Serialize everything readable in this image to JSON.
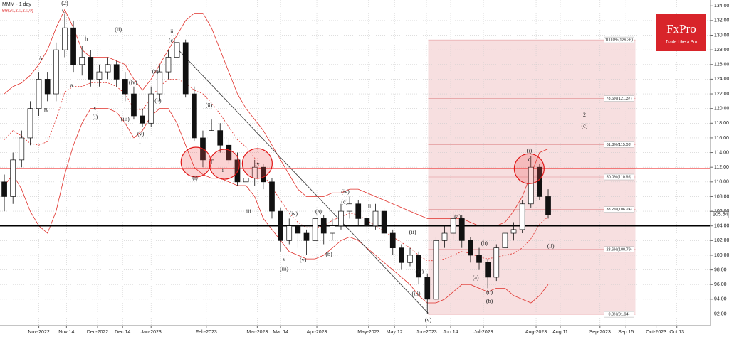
{
  "chart_data": {
    "type": "candlestick",
    "title": "MMM - 1 day",
    "subtitle": "BB(20,2.0,2.0,0)",
    "brand": {
      "name": "FxPro",
      "tagline": "Trade Like a Pro"
    },
    "open": [
      110,
      108,
      113,
      116,
      120,
      124,
      122,
      128,
      131,
      126,
      127,
      124,
      125,
      126,
      124,
      122,
      119,
      118,
      122,
      125,
      127,
      129,
      122,
      116,
      113,
      117,
      115,
      113,
      110,
      110.5,
      112,
      110,
      106,
      102,
      104,
      103,
      102,
      105,
      103,
      104,
      106,
      107,
      105,
      104,
      106,
      103,
      101,
      99,
      100,
      97,
      94,
      102,
      103,
      105,
      102,
      100,
      99,
      97,
      101,
      103,
      103.5,
      107,
      112,
      108
    ],
    "high": [
      111,
      114,
      117,
      121,
      125,
      125,
      129,
      133,
      132,
      128.5,
      128,
      126,
      127,
      126.5,
      125,
      123,
      120,
      123,
      126,
      128,
      129.5,
      129.4,
      123,
      117,
      118.5,
      118,
      116,
      114,
      111.5,
      113,
      112.5,
      110.5,
      106.5,
      105,
      104.5,
      103.5,
      106,
      105.5,
      105,
      107,
      108,
      107.5,
      105.5,
      107,
      106.5,
      103.5,
      101.5,
      101,
      100.5,
      97.5,
      102.5,
      104,
      106,
      105.5,
      102.5,
      101,
      99.5,
      101.5,
      104,
      104.5,
      107.5,
      113.5,
      112.5,
      109
    ],
    "low": [
      106,
      107,
      112,
      115,
      119,
      121,
      121,
      127,
      125,
      124.5,
      123,
      123,
      124,
      123,
      121,
      118.5,
      117.5,
      117.5,
      121,
      124,
      126,
      121.5,
      115.5,
      112,
      112.5,
      114,
      112.5,
      109.5,
      108.5,
      109.5,
      109,
      105,
      100.5,
      101.5,
      101,
      100,
      101.5,
      101.5,
      102,
      103.5,
      105,
      104,
      103,
      103.5,
      102.5,
      100,
      98,
      98.5,
      96,
      92,
      93.5,
      101,
      102,
      101,
      99,
      98,
      95.5,
      96.5,
      100.5,
      102,
      103,
      106.5,
      107.5,
      105
    ],
    "close": [
      108,
      113,
      116,
      120,
      124,
      122,
      128,
      131,
      126,
      127,
      124,
      125,
      126,
      124,
      122,
      119,
      118,
      122,
      125,
      127,
      129,
      122,
      116,
      113,
      117,
      115,
      113,
      110,
      110.5,
      112,
      110,
      106,
      102,
      104,
      103,
      102,
      105,
      103,
      104,
      106,
      107,
      105,
      104,
      106,
      103,
      101,
      99,
      100,
      97,
      94,
      102,
      103,
      105,
      102,
      100,
      99,
      97,
      101,
      103,
      103.5,
      107,
      112,
      108,
      105.54
    ],
    "bands": {
      "color": "#e0302a",
      "upper": [
        122,
        123,
        123.5,
        124.5,
        126,
        128,
        131,
        133.5,
        131,
        128,
        127,
        127,
        127,
        126.5,
        126,
        124,
        122.5,
        124,
        126,
        128,
        130,
        132,
        133,
        133,
        131,
        128,
        125,
        122,
        120,
        118.5,
        117,
        115,
        113,
        111,
        109,
        108,
        108,
        108,
        108.5,
        108.5,
        109,
        109,
        108.5,
        108,
        107.5,
        107,
        106.5,
        106,
        105.5,
        105,
        105,
        105,
        105,
        105,
        104.5,
        104,
        104,
        104,
        104.5,
        106,
        108,
        111,
        114,
        114.5
      ],
      "middle": [
        115.75,
        117,
        116.25,
        115.25,
        115,
        115.5,
        118.5,
        122.25,
        123,
        123,
        123.5,
        123.5,
        123.5,
        123,
        122,
        120,
        119.75,
        121.5,
        123,
        124,
        124,
        123.5,
        122.5,
        122,
        120.75,
        119.25,
        117.5,
        115.75,
        114.75,
        113.25,
        111,
        109.25,
        107.5,
        105.75,
        104.5,
        103.75,
        103.75,
        104,
        104.75,
        105.25,
        105.75,
        105.5,
        104.75,
        104,
        103.25,
        102.5,
        101.75,
        101,
        100,
        99.25,
        99.25,
        99.5,
        100,
        100.5,
        100.25,
        99.75,
        99.5,
        99.75,
        100,
        100.25,
        101,
        102.25,
        104.25,
        105.25
      ],
      "lower": [
        109.5,
        111,
        109,
        106,
        104,
        103,
        106,
        111,
        115,
        118,
        120,
        120,
        120,
        119.5,
        118,
        116,
        117,
        119,
        120,
        120,
        118,
        115,
        112,
        111,
        110.5,
        110.5,
        110,
        109.5,
        109.5,
        108,
        105,
        103.5,
        102,
        100.5,
        100,
        99.5,
        99.5,
        100,
        101,
        102,
        102.5,
        102,
        101,
        100,
        99,
        98,
        97,
        96,
        94.5,
        93.5,
        93.5,
        94,
        95,
        96,
        96,
        95.5,
        95,
        95.5,
        95.5,
        94.5,
        94,
        93.5,
        94.5,
        96
      ]
    },
    "xlim": [
      0,
      82.3
    ],
    "ylim": [
      90.4,
      134.8
    ],
    "xticks": [
      {
        "value": 4.5,
        "label": "Nov-2022"
      },
      {
        "value": 7.7,
        "label": "Nov 14"
      },
      {
        "value": 11.3,
        "label": "Dec-2022"
      },
      {
        "value": 14.2,
        "label": "Dec 14"
      },
      {
        "value": 17.5,
        "label": "Jan-2023"
      },
      {
        "value": 23.9,
        "label": "Feb-2023"
      },
      {
        "value": 29.8,
        "label": "Mar-2023"
      },
      {
        "value": 32.5,
        "label": "Mar 14"
      },
      {
        "value": 36.7,
        "label": "Apr-2023"
      },
      {
        "value": 42.7,
        "label": "May-2023"
      },
      {
        "value": 45.7,
        "label": "May 12"
      },
      {
        "value": 49.4,
        "label": "Jun-2023"
      },
      {
        "value": 52.2,
        "label": "Jun 14"
      },
      {
        "value": 56,
        "label": "Jul-2023"
      },
      {
        "value": 62.1,
        "label": "Aug-2023"
      },
      {
        "value": 64.9,
        "label": "Aug 11"
      },
      {
        "value": 69.5,
        "label": "Sep-2023"
      },
      {
        "value": 72.5,
        "label": "Sep 15"
      },
      {
        "value": 76,
        "label": "Oct-2023"
      },
      {
        "value": 78.4,
        "label": "Oct 13"
      }
    ],
    "yticks": [
      {
        "value": 92,
        "label": "92.00"
      },
      {
        "value": 94,
        "label": "94.00"
      },
      {
        "value": 96,
        "label": "96.00"
      },
      {
        "value": 98,
        "label": "98.00"
      },
      {
        "value": 100,
        "label": "100.00"
      },
      {
        "value": 102,
        "label": "102.00"
      },
      {
        "value": 104,
        "label": "104.00"
      },
      {
        "value": 106,
        "label": "106.00"
      },
      {
        "value": 108,
        "label": "108.00"
      },
      {
        "value": 110,
        "label": "110.00"
      },
      {
        "value": 112,
        "label": "112.00"
      },
      {
        "value": 114,
        "label": "114.00"
      },
      {
        "value": 116,
        "label": "116.00"
      },
      {
        "value": 118,
        "label": "118.00"
      },
      {
        "value": 120,
        "label": "120.00"
      },
      {
        "value": 122,
        "label": "122.00"
      },
      {
        "value": 124,
        "label": "124.00"
      },
      {
        "value": 126,
        "label": "126.00"
      },
      {
        "value": 128,
        "label": "128.00"
      },
      {
        "value": 130,
        "label": "130.00"
      },
      {
        "value": 132,
        "label": "132.00"
      },
      {
        "value": 134,
        "label": "134.00"
      }
    ],
    "grid": true,
    "fibonacci": {
      "x": [
        49.6,
        73.6
      ],
      "color": "#f4d4d6",
      "levels": [
        {
          "value": 129.36,
          "label": "100.0%(129.36)"
        },
        {
          "value": 121.37,
          "label": "78.6%(121.37)"
        },
        {
          "value": 115.08,
          "label": "61.8%(115.08)"
        },
        {
          "value": 110.66,
          "label": "50.0%(110.66)"
        },
        {
          "value": 106.24,
          "label": "38.2%(106.24)"
        },
        {
          "value": 100.79,
          "label": "23.6%(100.79)"
        },
        {
          "value": 91.94,
          "label": "0.0%(91.94)"
        }
      ]
    },
    "levels": [
      {
        "value": 111.8,
        "color": "#ee1111"
      },
      {
        "value": 104,
        "color": "#000000"
      }
    ],
    "circles": [
      {
        "x": 22.7,
        "y": 112.7
      },
      {
        "x": 26,
        "y": 112.4
      },
      {
        "x": 29.8,
        "y": 112.5
      },
      {
        "x": 61.3,
        "y": 111.8
      }
    ],
    "trendline": {
      "x": [
        20.5,
        49.6
      ],
      "y": [
        128.2,
        92.1
      ]
    },
    "annotations": [
      {
        "text": "(2)",
        "x": 7.5,
        "y": 134.3
      },
      {
        "text": "C",
        "x": 7.4,
        "y": 133.3
      },
      {
        "text": "A",
        "x": 4.7,
        "y": 126.8
      },
      {
        "text": "B",
        "x": 5.3,
        "y": 119.7
      },
      {
        "text": "a",
        "x": 8.3,
        "y": 123.1
      },
      {
        "text": "b",
        "x": 10,
        "y": 129.4
      },
      {
        "text": "c",
        "x": 11,
        "y": 120
      },
      {
        "text": "(i)",
        "x": 11,
        "y": 118.8
      },
      {
        "text": "(ii)",
        "x": 13.7,
        "y": 130.7
      },
      {
        "text": "(iv)",
        "x": 15.4,
        "y": 123.5
      },
      {
        "text": "(iii)",
        "x": 14.5,
        "y": 118.5
      },
      {
        "text": "(v)",
        "x": 16.3,
        "y": 116.5
      },
      {
        "text": "i",
        "x": 16.2,
        "y": 115.4
      },
      {
        "text": "(a)",
        "x": 18,
        "y": 125
      },
      {
        "text": "(b)",
        "x": 18.3,
        "y": 121
      },
      {
        "text": "(c)",
        "x": 19.9,
        "y": 129.2
      },
      {
        "text": "ii",
        "x": 19.9,
        "y": 130.4
      },
      {
        "text": "(ii)",
        "x": 24.2,
        "y": 120.4
      },
      {
        "text": "(i)",
        "x": 22.6,
        "y": 110.5
      },
      {
        "text": "i",
        "x": 25.8,
        "y": 111.5
      },
      {
        "text": "iii",
        "x": 28.8,
        "y": 105.9
      },
      {
        "text": "iv",
        "x": 29.8,
        "y": 112.4
      },
      {
        "text": "(iv)",
        "x": 34,
        "y": 105.6
      },
      {
        "text": "v",
        "x": 32.9,
        "y": 99.4
      },
      {
        "text": "(iii)",
        "x": 32.9,
        "y": 98.1
      },
      {
        "text": "(v)",
        "x": 35.1,
        "y": 99.3
      },
      {
        "text": "(a)",
        "x": 36.9,
        "y": 105.9
      },
      {
        "text": "(b)",
        "x": 38.1,
        "y": 100.1
      },
      {
        "text": "(iv)",
        "x": 40,
        "y": 108.6
      },
      {
        "text": "(c)",
        "x": 39.9,
        "y": 107.2
      },
      {
        "text": "ii",
        "x": 42.8,
        "y": 106.6
      },
      {
        "text": "(ii)",
        "x": 47.8,
        "y": 103.1
      },
      {
        "text": "(iv)",
        "x": 48.6,
        "y": 97.7
      },
      {
        "text": "(iii)",
        "x": 48.2,
        "y": 94.7
      },
      {
        "text": "(v)",
        "x": 49.6,
        "y": 91.1
      },
      {
        "text": "(a)",
        "x": 53,
        "y": 105.2
      },
      {
        "text": "(b)",
        "x": 56.1,
        "y": 101.6
      },
      {
        "text": "(a)",
        "x": 55.1,
        "y": 96.9
      },
      {
        "text": "(c)",
        "x": 56.7,
        "y": 94.9
      },
      {
        "text": "(b)",
        "x": 56.7,
        "y": 93.7
      },
      {
        "text": "(i)",
        "x": 61.3,
        "y": 114.2
      },
      {
        "text": "c",
        "x": 61.3,
        "y": 113
      },
      {
        "text": "(ii)",
        "x": 63.8,
        "y": 101.2
      },
      {
        "text": "2",
        "x": 67.7,
        "y": 119.1
      },
      {
        "text": "(c)",
        "x": 67.7,
        "y": 117.6
      }
    ]
  }
}
